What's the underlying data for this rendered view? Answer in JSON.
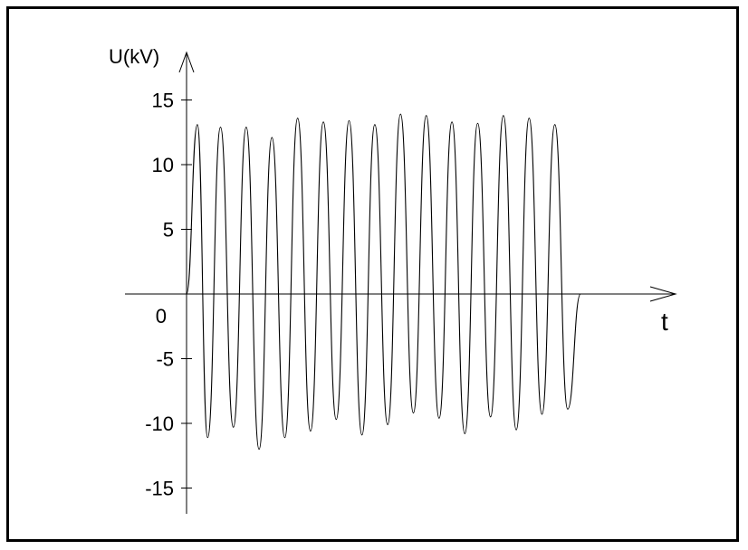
{
  "chart_data": {
    "type": "line",
    "title": "",
    "xlabel": "t",
    "ylabel": "U(kV)",
    "ylim": [
      -17,
      18
    ],
    "yticks": [
      15,
      10,
      5,
      0,
      -5,
      -10,
      -15
    ],
    "ytick_labels": [
      "15",
      "10",
      "5",
      "0",
      "-5",
      "-10",
      "-15"
    ],
    "grid": false,
    "legend": "none",
    "series": [
      {
        "x": [
          0,
          0.42,
          0.82,
          1.32,
          1.82,
          2.32,
          2.82,
          3.32,
          3.82,
          4.32,
          4.82,
          5.32,
          5.82,
          6.32,
          6.82,
          7.32,
          7.82,
          8.32,
          8.82,
          9.32,
          9.82,
          10.32,
          10.82,
          11.32,
          11.82,
          12.32,
          12.82,
          13.32,
          13.82,
          14.32,
          14.82,
          15.32,
          15.82,
          16.32,
          16.62
        ],
        "values": [
          0,
          13.1,
          -11.1,
          12.9,
          -10.3,
          12.9,
          -12.0,
          12.1,
          -11.1,
          13.6,
          -10.6,
          13.3,
          -9.7,
          13.4,
          -10.9,
          13.1,
          -10.1,
          13.9,
          -9.2,
          13.8,
          -9.6,
          13.3,
          -10.8,
          13.2,
          -9.5,
          13.8,
          -10.5,
          13.6,
          -9.3,
          13.1,
          -8.9,
          0,
          0,
          0,
          0
        ]
      }
    ]
  }
}
